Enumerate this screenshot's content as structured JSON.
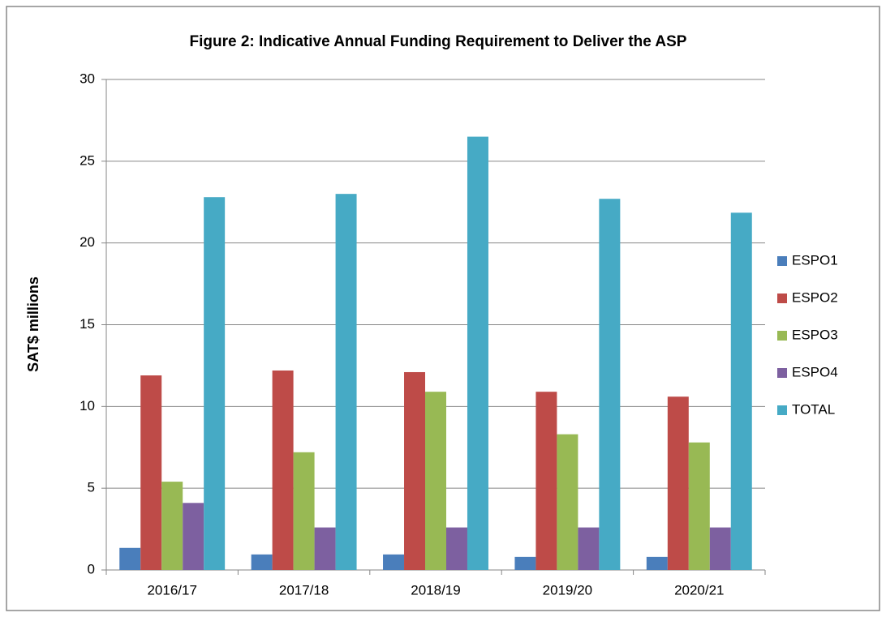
{
  "chart_data": {
    "type": "bar",
    "title": "Figure 2: Indicative  Annual Funding Requirement to Deliver the ASP",
    "y_label": "SAT$ millions",
    "categories": [
      "2016/17",
      "2017/18",
      "2018/19",
      "2019/20",
      "2020/21"
    ],
    "series": [
      {
        "name": "ESPO1",
        "color": "#4a7ebb",
        "values": [
          1.35,
          0.95,
          0.95,
          0.8,
          0.8
        ]
      },
      {
        "name": "ESPO2",
        "color": "#be4b48",
        "values": [
          11.9,
          12.2,
          12.1,
          10.9,
          10.6
        ]
      },
      {
        "name": "ESPO3",
        "color": "#98b954",
        "values": [
          5.4,
          7.2,
          10.9,
          8.3,
          7.8
        ]
      },
      {
        "name": "ESPO4",
        "color": "#7d60a0",
        "values": [
          4.1,
          2.6,
          2.6,
          2.6,
          2.6
        ]
      },
      {
        "name": "TOTAL",
        "color": "#46aac5",
        "values": [
          22.8,
          23.0,
          26.5,
          22.7,
          21.85
        ]
      }
    ],
    "ylim": [
      0,
      30
    ],
    "yticks": [
      0,
      5,
      10,
      15,
      20,
      25,
      30
    ],
    "grid": true,
    "legend": "right"
  }
}
